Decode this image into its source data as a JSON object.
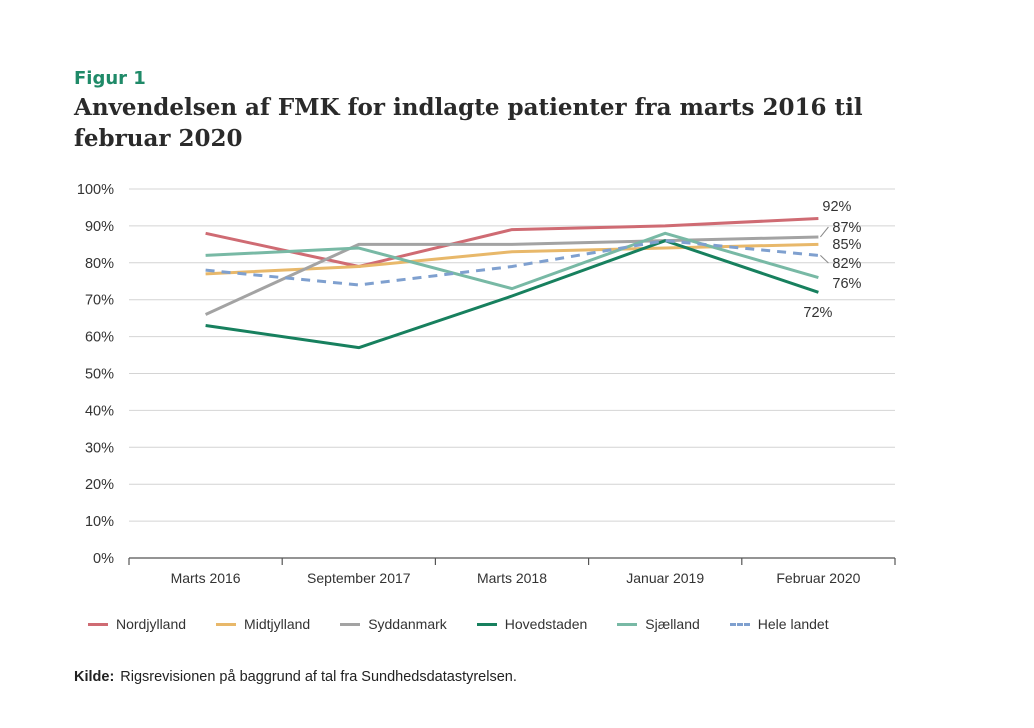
{
  "figure": {
    "label": "Figur 1",
    "title": "Anvendelsen af FMK for indlagte patienter fra marts 2016 til februar 2020"
  },
  "source": {
    "label": "Kilde:",
    "text": "Rigsrevisionen på baggrund af tal fra Sundhedsdatastyrelsen."
  },
  "chart_data": {
    "type": "line",
    "title": "Anvendelsen af FMK for indlagte patienter fra marts 2016 til februar 2020",
    "xlabel": "",
    "ylabel": "",
    "ylim": [
      0,
      100
    ],
    "y_unit": "%",
    "y_ticks": [
      "0%",
      "10%",
      "20%",
      "30%",
      "40%",
      "50%",
      "60%",
      "70%",
      "80%",
      "90%",
      "100%"
    ],
    "grid": true,
    "legend_position": "bottom",
    "categories": [
      "Marts 2016",
      "September 2017",
      "Marts 2018",
      "Januar 2019",
      "Februar 2020"
    ],
    "series": [
      {
        "name": "Nordjylland",
        "color": "#cf6b73",
        "dash": false,
        "values": [
          88,
          79,
          89,
          90,
          92
        ],
        "end_label": "92%"
      },
      {
        "name": "Midtjylland",
        "color": "#e8b86a",
        "dash": false,
        "values": [
          77,
          79,
          83,
          84,
          85
        ],
        "end_label": "85%"
      },
      {
        "name": "Syddanmark",
        "color": "#a3a3a3",
        "dash": false,
        "values": [
          66,
          85,
          85,
          86,
          87
        ],
        "end_label": "87%"
      },
      {
        "name": "Hovedstaden",
        "color": "#17805e",
        "dash": false,
        "values": [
          63,
          57,
          71,
          86,
          72
        ],
        "end_label": "72%"
      },
      {
        "name": "Sjælland",
        "color": "#78b9a5",
        "dash": false,
        "values": [
          82,
          84,
          73,
          88,
          76
        ],
        "end_label": "76%"
      },
      {
        "name": "Hele landet",
        "color": "#7fa0cf",
        "dash": true,
        "values": [
          78,
          74,
          79,
          86,
          82
        ],
        "end_label": "82%"
      }
    ]
  }
}
